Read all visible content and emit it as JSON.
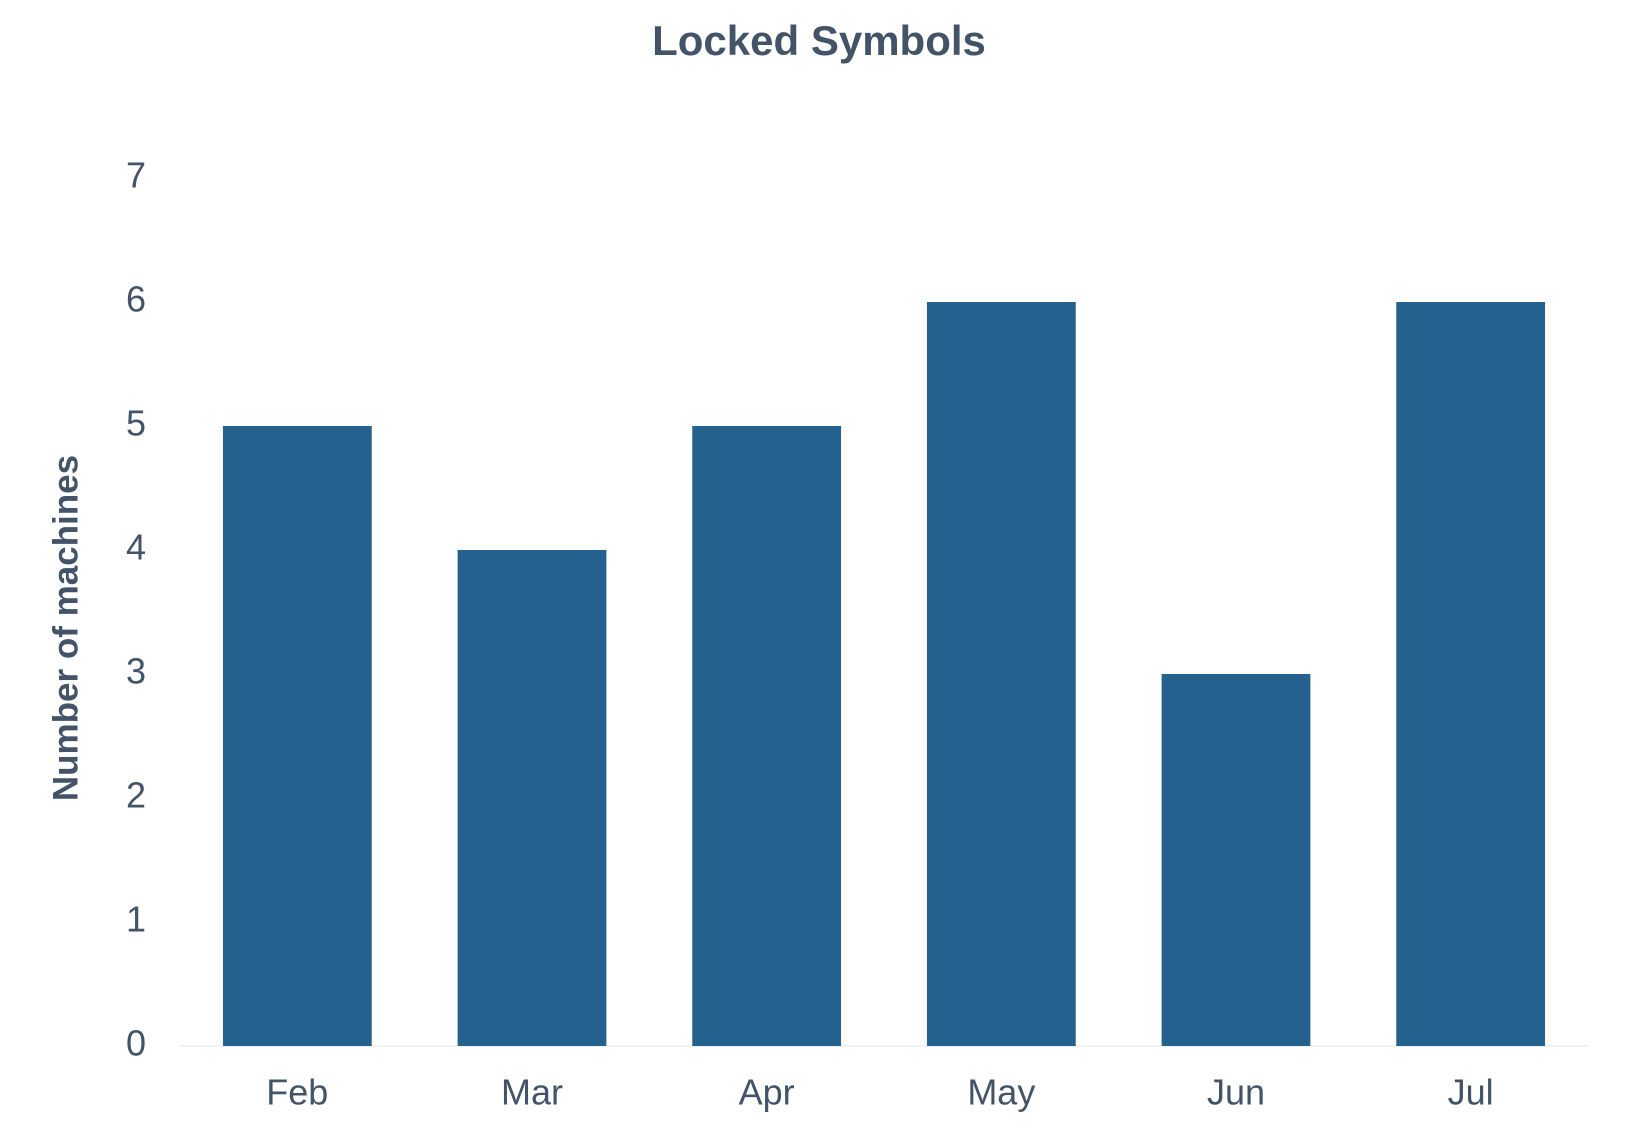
{
  "chart_data": {
    "type": "bar",
    "title": "Locked Symbols",
    "y_label": "Number of machines",
    "categories": [
      "Feb",
      "Mar",
      "Apr",
      "May",
      "Jun",
      "Jul"
    ],
    "values": [
      5,
      4,
      5,
      6,
      3,
      6
    ],
    "color": "#24618e",
    "ylim": [
      0,
      7
    ],
    "yticks": [
      0,
      1,
      2,
      3,
      4,
      5,
      6,
      7
    ],
    "grid": false
  }
}
